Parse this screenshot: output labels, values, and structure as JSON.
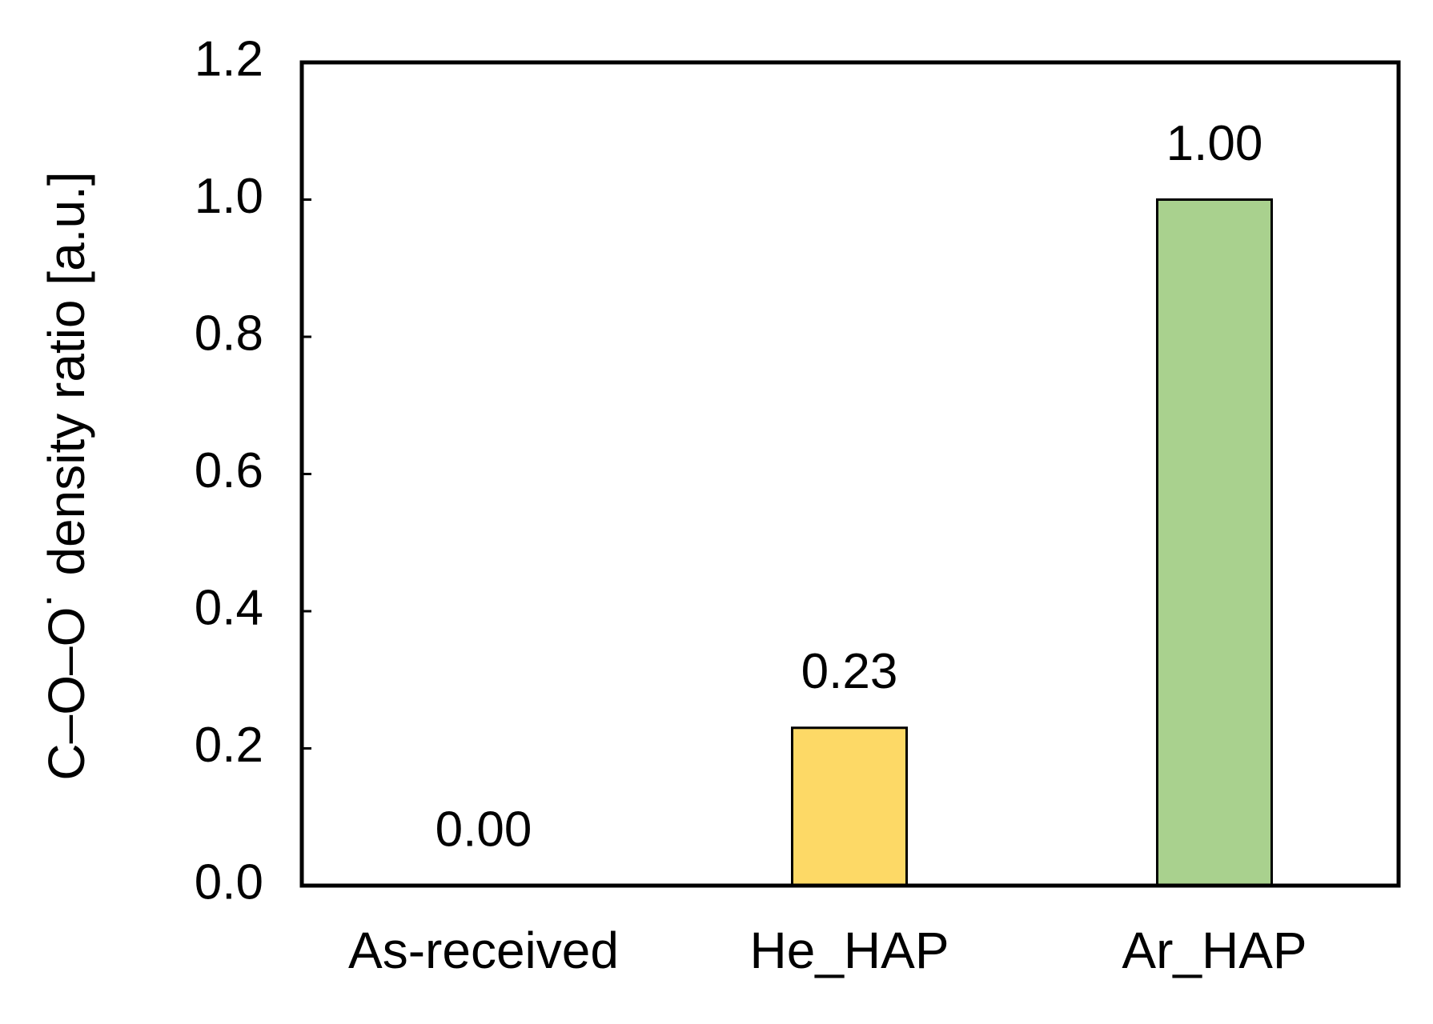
{
  "chart_data": {
    "type": "bar",
    "y_label": "C–O–O˙ density ratio [a.u.]",
    "categories": [
      "As-received",
      "He_HAP",
      "Ar_HAP"
    ],
    "values": [
      0,
      0.23,
      1
    ],
    "value_labels": [
      "0.00",
      "0.23",
      "1.00"
    ],
    "colors": [
      "#fdd966",
      "#fdd966",
      "#a9d18e"
    ],
    "ylim": [
      0,
      1.2
    ],
    "yticks": [
      {
        "value": 0,
        "label": "0.0"
      },
      0.2,
      0.4,
      0.6,
      0.8,
      {
        "value": 1,
        "label": "1.0"
      },
      1.2
    ],
    "grid": false
  }
}
